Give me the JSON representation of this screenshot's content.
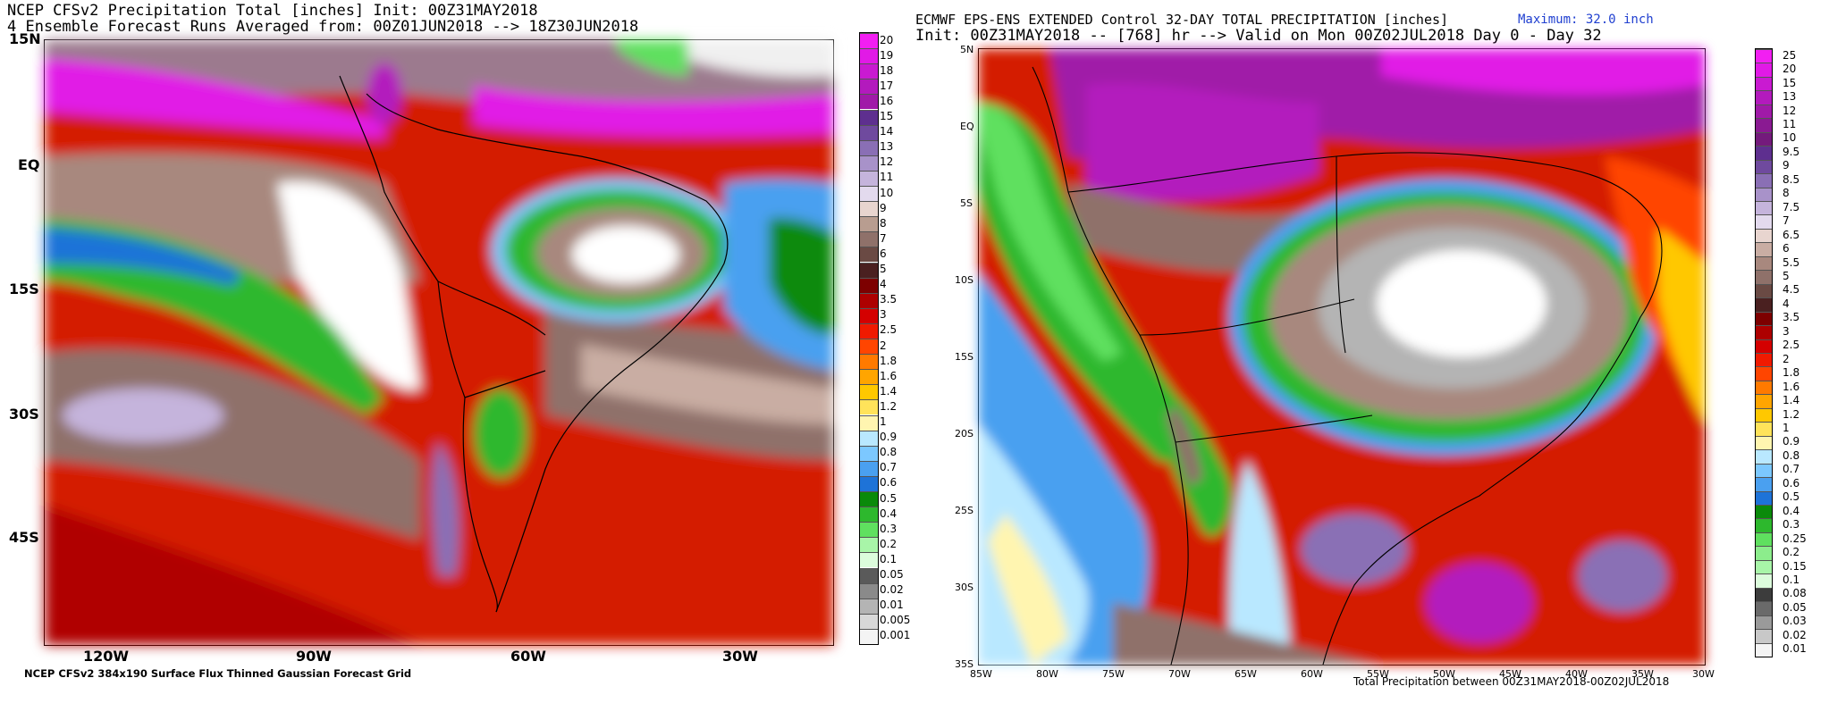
{
  "left": {
    "title_line1": "NCEP CFSv2 Precipitation Total [inches] Init: 00Z31MAY2018",
    "title_line2": "4 Ensemble Forecast Runs Averaged from: 00Z01JUN2018 --> 18Z30JUN2018",
    "lat_ticks": [
      "15N",
      "EQ",
      "15S",
      "30S",
      "45S"
    ],
    "lon_ticks": [
      "120W",
      "90W",
      "60W",
      "30W"
    ],
    "footer": "NCEP CFSv2 384x190 Surface Flux Thinned Gaussian Forecast Grid",
    "colorbar_labels": [
      "20",
      "19",
      "18",
      "17",
      "16",
      "15",
      "14",
      "13",
      "12",
      "11",
      "10",
      "9",
      "8",
      "7",
      "6",
      "5",
      "4",
      "3.5",
      "3",
      "2.5",
      "2",
      "1.8",
      "1.6",
      "1.4",
      "1.2",
      "1",
      "0.9",
      "0.8",
      "0.7",
      "0.6",
      "0.5",
      "0.4",
      "0.3",
      "0.2",
      "0.1",
      "0.05",
      "0.02",
      "0.01",
      "0.005",
      "0.001"
    ],
    "colorbar_colors": [
      "#f21ff2",
      "#e11ae6",
      "#c91ad1",
      "#b31abd",
      "#a01aa8",
      "#5e2f8f",
      "#6f4a9e",
      "#8a6fb5",
      "#a892c9",
      "#c5b4dc",
      "#e3daee",
      "#e8d5cf",
      "#b89d90",
      "#8f716a",
      "#6a4a44",
      "#4a2020",
      "#7d0000",
      "#ad0000",
      "#d40000",
      "#f01a00",
      "#ff4500",
      "#ff7a00",
      "#ffa500",
      "#ffc800",
      "#ffe35a",
      "#fff5b0",
      "#b9e8ff",
      "#7cc8ff",
      "#4aa0f0",
      "#1e73d8",
      "#0a8a0a",
      "#2db82d",
      "#5fe05f",
      "#a8f5a8",
      "#dcfcdc",
      "#5a5a5a",
      "#8a8a8a",
      "#b4b4b4",
      "#d8d8d8",
      "#f4f4f4"
    ]
  },
  "right": {
    "title_line1": "ECMWF EPS-ENS EXTENDED Control 32-DAY TOTAL PRECIPITATION [inches]",
    "max_label": "Maximum: 32.0 inch",
    "title_line2": "Init: 00Z31MAY2018 -- [768] hr --> Valid on Mon 00Z02JUL2018  Day 0 - Day 32",
    "lat_ticks": [
      "5N",
      "EQ",
      "5S",
      "10S",
      "15S",
      "20S",
      "25S",
      "30S",
      "35S"
    ],
    "lon_ticks": [
      "85W",
      "80W",
      "75W",
      "70W",
      "65W",
      "60W",
      "55W",
      "50W",
      "45W",
      "40W",
      "35W",
      "30W"
    ],
    "footer": "Total Precipitation between 00Z31MAY2018-00Z02JUL2018",
    "colorbar_labels": [
      "25",
      "20",
      "15",
      "13",
      "12",
      "11",
      "10",
      "9.5",
      "9",
      "8.5",
      "8",
      "7.5",
      "7",
      "6.5",
      "6",
      "5.5",
      "5",
      "4.5",
      "4",
      "3.5",
      "3",
      "2.5",
      "2",
      "1.8",
      "1.6",
      "1.4",
      "1.2",
      "1",
      "0.9",
      "0.8",
      "0.7",
      "0.6",
      "0.5",
      "0.4",
      "0.3",
      "0.25",
      "0.2",
      "0.15",
      "0.1",
      "0.08",
      "0.05",
      "0.03",
      "0.02",
      "0.01"
    ],
    "colorbar_colors": [
      "#f21ff2",
      "#e11ae6",
      "#c91ad1",
      "#b31abd",
      "#a01aa8",
      "#8a1a92",
      "#741a7c",
      "#5e2f8f",
      "#6f4a9e",
      "#8a6fb5",
      "#a892c9",
      "#c5b4dc",
      "#e3daee",
      "#e8d5cf",
      "#c9ada3",
      "#a8887e",
      "#8f716a",
      "#6a4a44",
      "#4a2020",
      "#7d0000",
      "#ad0000",
      "#d40000",
      "#f01a00",
      "#ff4500",
      "#ff7a00",
      "#ffa500",
      "#ffc800",
      "#ffe35a",
      "#fff5b0",
      "#b9e8ff",
      "#7cc8ff",
      "#4aa0f0",
      "#1e73d8",
      "#0a8a0a",
      "#2db82d",
      "#5fe05f",
      "#8ced8c",
      "#a8f5a8",
      "#dcfcdc",
      "#3c3c3c",
      "#6a6a6a",
      "#9a9a9a",
      "#c8c8c8",
      "#f4f4f4"
    ]
  }
}
